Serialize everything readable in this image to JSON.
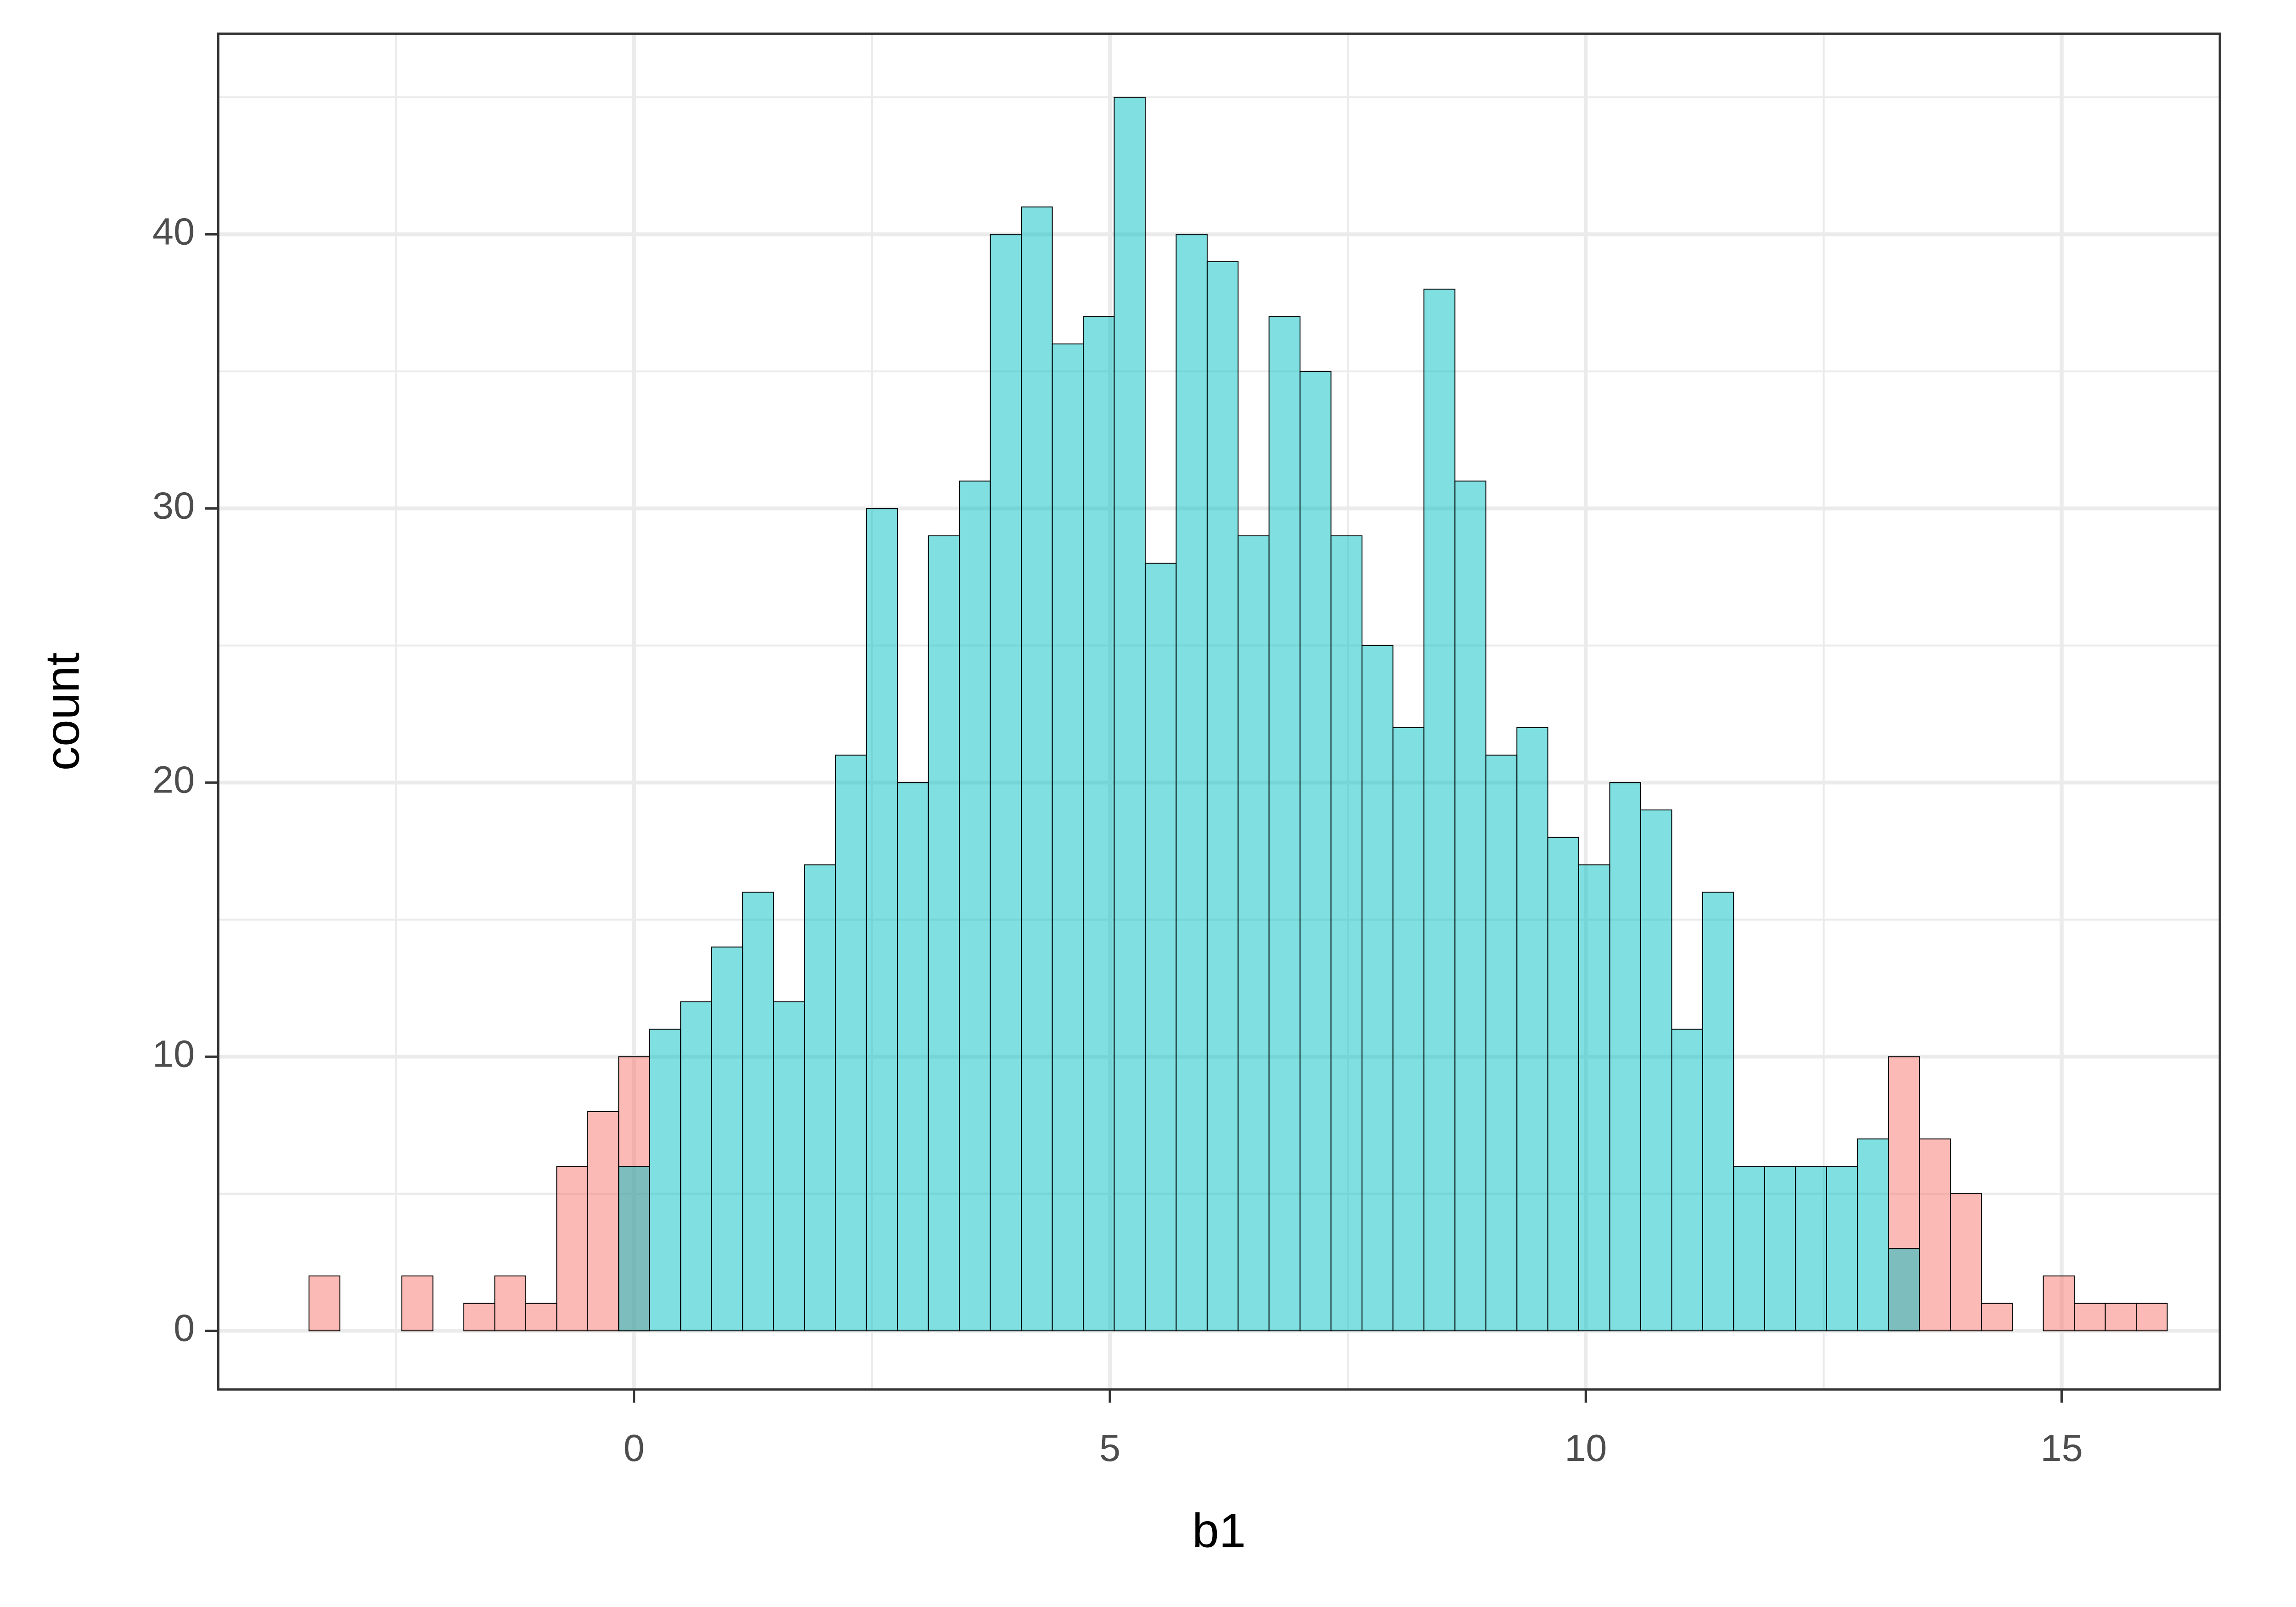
{
  "chart_data": {
    "type": "histogram",
    "x_label": "b1",
    "y_label": "count",
    "bins": [
      -3.415,
      -3.09,
      -2.764,
      -2.439,
      -2.113,
      -1.788,
      -1.463,
      -1.137,
      -0.812,
      -0.486,
      -0.161,
      0.164,
      0.49,
      0.815,
      1.141,
      1.466,
      1.791,
      2.117,
      2.442,
      2.768,
      3.093,
      3.418,
      3.744,
      4.069,
      4.395,
      4.72,
      5.045,
      5.371,
      5.696,
      6.022,
      6.347,
      6.672,
      6.998,
      7.323,
      7.649,
      7.974,
      8.299,
      8.625,
      8.95,
      9.276,
      9.601,
      9.926,
      10.252,
      10.577,
      10.903,
      11.228,
      11.553,
      11.879,
      12.204,
      12.53,
      12.855,
      13.18,
      13.506,
      13.831,
      14.157,
      14.482,
      14.807,
      15.133,
      15.458,
      15.784,
      16.109
    ],
    "series": [
      {
        "color": "#F8766D",
        "values": [
          2,
          0,
          0,
          2,
          0,
          1,
          2,
          1,
          6,
          8,
          10,
          0,
          0,
          0,
          0,
          0,
          0,
          0,
          0,
          0,
          0,
          0,
          0,
          0,
          0,
          0,
          0,
          0,
          0,
          0,
          0,
          0,
          0,
          0,
          0,
          0,
          0,
          0,
          0,
          0,
          0,
          0,
          0,
          0,
          0,
          0,
          0,
          0,
          0,
          0,
          0,
          10,
          7,
          5,
          1,
          0,
          2,
          1,
          1,
          1
        ]
      },
      {
        "color": "#00BFC4",
        "values": [
          0,
          0,
          0,
          0,
          0,
          0,
          0,
          0,
          0,
          0,
          6,
          11,
          12,
          14,
          16,
          12,
          17,
          21,
          30,
          20,
          29,
          31,
          40,
          41,
          36,
          37,
          45,
          28,
          40,
          39,
          29,
          37,
          35,
          29,
          25,
          22,
          38,
          31,
          21,
          22,
          18,
          17,
          20,
          19,
          11,
          16,
          6,
          6,
          6,
          6,
          7,
          3,
          0,
          0,
          0,
          0,
          0,
          0,
          0,
          0
        ]
      }
    ],
    "fill_opacity": 0.5,
    "xlim": [
      -4.369,
      16.662
    ],
    "ylim": [
      -2.14,
      47.32
    ],
    "xticks": [
      0,
      5,
      10,
      15
    ],
    "yticks": [
      0,
      10,
      20,
      30,
      40
    ],
    "xminor": [
      -2.5,
      2.5,
      7.5,
      12.5
    ],
    "yminor": [
      5,
      15,
      25,
      35,
      45
    ],
    "grid": true
  }
}
